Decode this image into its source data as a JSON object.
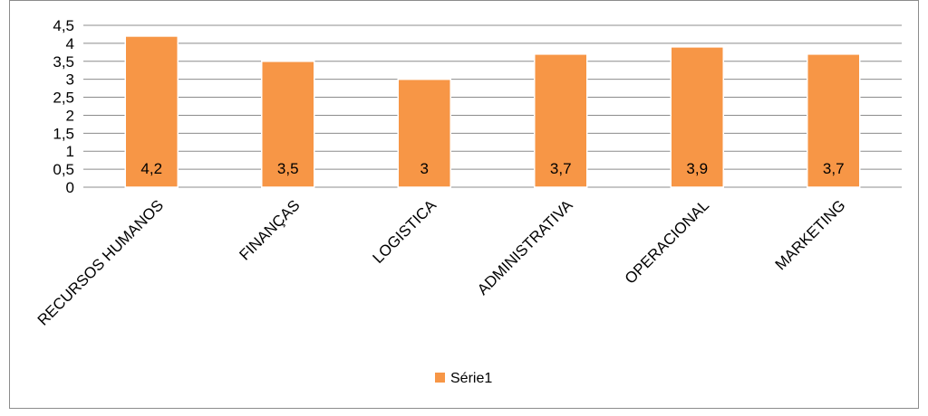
{
  "chart_data": {
    "type": "bar",
    "title": "",
    "xlabel": "",
    "ylabel": "",
    "categories": [
      "RECURSOS HUMANOS",
      "FINANÇAS",
      "LOGISTICA",
      "ADMINISTRATIVA",
      "OPERACIONAL",
      "MARKETING"
    ],
    "series": [
      {
        "name": "Série1",
        "values": [
          4.2,
          3.5,
          3,
          3.7,
          3.9,
          3.7
        ],
        "color": "#F79646"
      }
    ],
    "data_labels": [
      "4,2",
      "3,5",
      "3",
      "3,7",
      "3,9",
      "3,7"
    ],
    "y_ticks": [
      "0",
      "0,5",
      "1",
      "1,5",
      "2",
      "2,5",
      "3",
      "3,5",
      "4",
      "4,5"
    ],
    "ylim": [
      0,
      4.5
    ],
    "grid": true,
    "legend_position": "bottom"
  }
}
